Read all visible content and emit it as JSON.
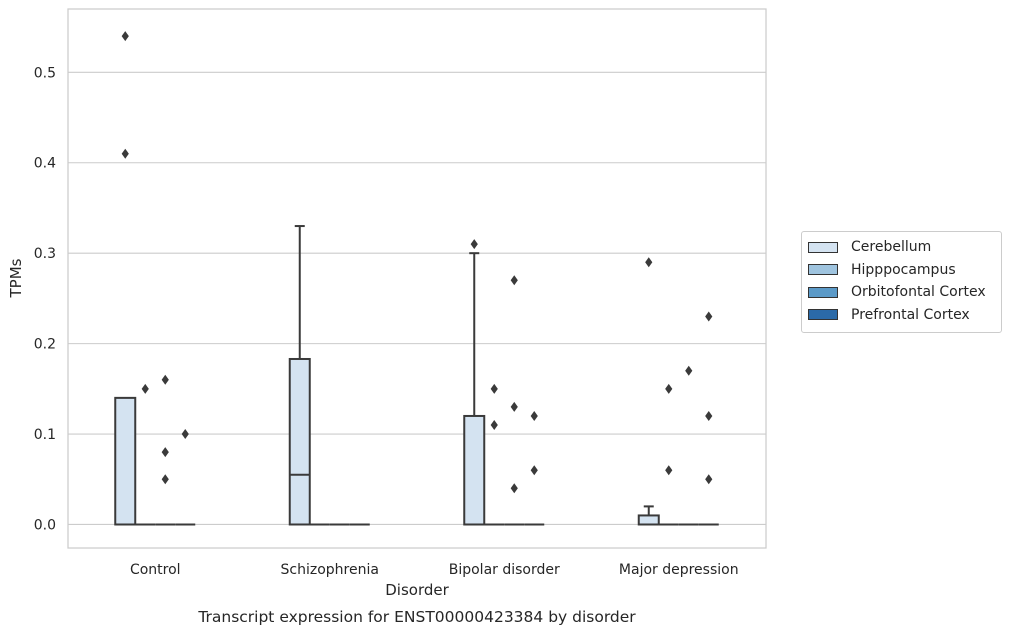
{
  "chart_data": {
    "type": "box",
    "title": "Transcript expression for ENST00000423384 by disorder",
    "xlabel": "Disorder",
    "ylabel": "TPMs",
    "ylim": [
      -0.026,
      0.57
    ],
    "yticks": [
      "0.0",
      "0.1",
      "0.2",
      "0.3",
      "0.4",
      "0.5"
    ],
    "ytick_values": [
      0.0,
      0.1,
      0.2,
      0.3,
      0.4,
      0.5
    ],
    "categories": [
      "Control",
      "Schizophrenia",
      "Bipolar disorder",
      "Major depression"
    ],
    "grid": "horizontal",
    "legend_position": "right",
    "series": [
      {
        "name": "Cerebellum",
        "color": "#d4e3f1",
        "boxes": [
          {
            "q1": 0.0,
            "median": 0.0,
            "q3": 0.14,
            "whisker_low": 0.0,
            "whisker_high": 0.14,
            "outliers": [
              0.54,
              0.41
            ]
          },
          {
            "q1": 0.0,
            "median": 0.055,
            "q3": 0.183,
            "whisker_low": 0.0,
            "whisker_high": 0.33,
            "outliers": []
          },
          {
            "q1": 0.0,
            "median": 0.0,
            "q3": 0.12,
            "whisker_low": 0.0,
            "whisker_high": 0.3,
            "outliers": [
              0.31
            ]
          },
          {
            "q1": 0.0,
            "median": 0.0,
            "q3": 0.01,
            "whisker_low": 0.0,
            "whisker_high": 0.02,
            "outliers": [
              0.29
            ]
          }
        ]
      },
      {
        "name": "Hipppocampus",
        "color": "#9fc4df",
        "boxes": [
          {
            "q1": 0.0,
            "median": 0.0,
            "q3": 0.0,
            "whisker_low": 0.0,
            "whisker_high": 0.0,
            "outliers": [
              0.15
            ]
          },
          {
            "q1": 0.0,
            "median": 0.0,
            "q3": 0.0,
            "whisker_low": 0.0,
            "whisker_high": 0.0,
            "outliers": []
          },
          {
            "q1": 0.0,
            "median": 0.0,
            "q3": 0.0,
            "whisker_low": 0.0,
            "whisker_high": 0.0,
            "outliers": [
              0.15,
              0.11
            ]
          },
          {
            "q1": 0.0,
            "median": 0.0,
            "q3": 0.0,
            "whisker_low": 0.0,
            "whisker_high": 0.0,
            "outliers": [
              0.15,
              0.06
            ]
          }
        ]
      },
      {
        "name": "Orbitofontal Cortex",
        "color": "#5b9ac8",
        "boxes": [
          {
            "q1": 0.0,
            "median": 0.0,
            "q3": 0.0,
            "whisker_low": 0.0,
            "whisker_high": 0.0,
            "outliers": [
              0.16,
              0.08,
              0.05
            ]
          },
          {
            "q1": 0.0,
            "median": 0.0,
            "q3": 0.0,
            "whisker_low": 0.0,
            "whisker_high": 0.0,
            "outliers": []
          },
          {
            "q1": 0.0,
            "median": 0.0,
            "q3": 0.0,
            "whisker_low": 0.0,
            "whisker_high": 0.0,
            "outliers": [
              0.27,
              0.13,
              0.04
            ]
          },
          {
            "q1": 0.0,
            "median": 0.0,
            "q3": 0.0,
            "whisker_low": 0.0,
            "whisker_high": 0.0,
            "outliers": [
              0.17
            ]
          }
        ]
      },
      {
        "name": "Prefrontal Cortex",
        "color": "#2b6aa8",
        "boxes": [
          {
            "q1": 0.0,
            "median": 0.0,
            "q3": 0.0,
            "whisker_low": 0.0,
            "whisker_high": 0.0,
            "outliers": [
              0.1
            ]
          },
          {
            "q1": 0.0,
            "median": 0.0,
            "q3": 0.0,
            "whisker_low": 0.0,
            "whisker_high": 0.0,
            "outliers": []
          },
          {
            "q1": 0.0,
            "median": 0.0,
            "q3": 0.0,
            "whisker_low": 0.0,
            "whisker_high": 0.0,
            "outliers": [
              0.12,
              0.06
            ]
          },
          {
            "q1": 0.0,
            "median": 0.0,
            "q3": 0.0,
            "whisker_low": 0.0,
            "whisker_high": 0.0,
            "outliers": [
              0.23,
              0.12,
              0.05
            ]
          }
        ]
      }
    ]
  }
}
